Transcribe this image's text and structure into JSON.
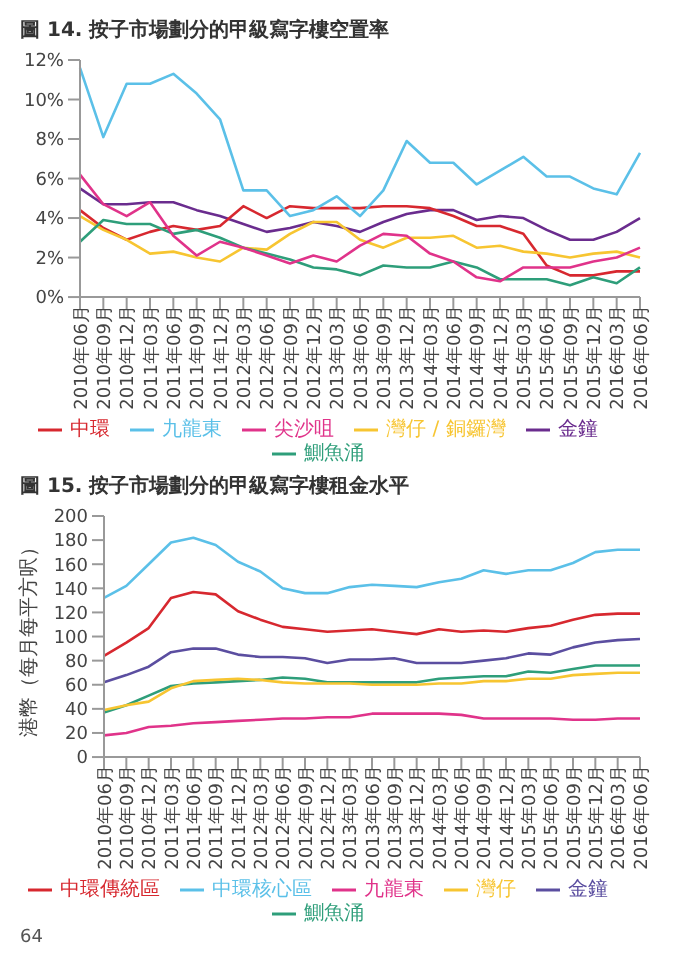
{
  "chart_data": [
    {
      "type": "line",
      "title": "圖 14. 按子市場劃分的甲級寫字樓空置率",
      "categories": [
        "2010年06月",
        "2010年09月",
        "2010年12月",
        "2011年03月",
        "2011年06月",
        "2011年09月",
        "2011年12月",
        "2012年03月",
        "2012年06月",
        "2012年09月",
        "2012年12月",
        "2013年03月",
        "2013年06月",
        "2013年09月",
        "2013年12月",
        "2014年03月",
        "2014年06月",
        "2014年09月",
        "2014年12月",
        "2015年03月",
        "2015年06月",
        "2015年09月",
        "2015年12月",
        "2016年03月",
        "2016年06月"
      ],
      "series": [
        {
          "name": "金鐘",
          "color": "#6a2c8e",
          "values": [
            5.5,
            4.7,
            4.7,
            4.8,
            4.8,
            4.4,
            4.1,
            3.7,
            3.3,
            3.5,
            3.8,
            3.6,
            3.3,
            3.8,
            4.2,
            4.4,
            4.4,
            3.9,
            4.1,
            4.0,
            3.4,
            2.9,
            2.9,
            3.3,
            4.0
          ]
        },
        {
          "name": "中環",
          "color": "#d7282f",
          "values": [
            4.4,
            3.5,
            2.9,
            3.3,
            3.6,
            3.4,
            3.6,
            4.6,
            4.0,
            4.6,
            4.5,
            4.5,
            4.5,
            4.6,
            4.6,
            4.5,
            4.1,
            3.6,
            3.6,
            3.2,
            1.6,
            1.1,
            1.1,
            1.3,
            1.3
          ]
        },
        {
          "name": "灣仔 / 銅鑼灣",
          "color": "#f7c531",
          "values": [
            4.1,
            3.4,
            2.9,
            2.2,
            2.3,
            2.0,
            1.8,
            2.5,
            2.4,
            3.2,
            3.8,
            3.8,
            2.9,
            2.5,
            3.0,
            3.0,
            3.1,
            2.5,
            2.6,
            2.3,
            2.2,
            2.0,
            2.2,
            2.3,
            2.0
          ]
        },
        {
          "name": "鰂魚涌",
          "color": "#2e9e7a",
          "values": [
            2.8,
            3.9,
            3.7,
            3.7,
            3.2,
            3.4,
            3.0,
            2.5,
            2.2,
            1.9,
            1.5,
            1.4,
            1.1,
            1.6,
            1.5,
            1.5,
            1.8,
            1.5,
            0.9,
            0.9,
            0.9,
            0.6,
            1.0,
            0.7,
            1.5
          ]
        },
        {
          "name": "尖沙咀",
          "color": "#e0338a",
          "values": [
            6.2,
            4.7,
            4.1,
            4.8,
            3.1,
            2.1,
            2.8,
            2.5,
            2.1,
            1.7,
            2.1,
            1.8,
            2.6,
            3.2,
            3.1,
            2.2,
            1.8,
            1.0,
            0.8,
            1.5,
            1.5,
            1.5,
            1.8,
            2.0,
            2.5
          ]
        },
        {
          "name": "九龍東",
          "color": "#5bc0e8",
          "values": [
            11.6,
            8.1,
            10.8,
            10.8,
            11.3,
            10.3,
            9.0,
            5.4,
            5.4,
            4.1,
            4.4,
            5.1,
            4.1,
            5.4,
            7.9,
            6.8,
            6.8,
            5.7,
            6.4,
            7.1,
            6.1,
            6.1,
            5.5,
            5.2,
            7.3
          ]
        }
      ],
      "ylim": [
        0,
        12
      ],
      "yticks": [
        {
          "value": 0,
          "label": "0%"
        },
        {
          "value": 2,
          "label": "2%"
        },
        {
          "value": 4,
          "label": "4%"
        },
        {
          "value": 6,
          "label": "6%"
        },
        {
          "value": 8,
          "label": "8%"
        },
        {
          "value": 10,
          "label": "10%"
        },
        {
          "value": 12,
          "label": "12%"
        }
      ],
      "legend": "bottom",
      "marker": "none",
      "line_style": "solid"
    },
    {
      "type": "line",
      "title": "圖 15. 按子市場劃分的甲級寫字樓租金水平",
      "ylabel": "港幣（每月每平方呎）",
      "categories": [
        "2010年06月",
        "2010年09月",
        "2010年12月",
        "2011年03月",
        "2011年06月",
        "2011年09月",
        "2011年12月",
        "2012年03月",
        "2012年06月",
        "2012年09月",
        "2012年12月",
        "2013年03月",
        "2013年06月",
        "2013年09月",
        "2013年12月",
        "2014年03月",
        "2014年06月",
        "2014年09月",
        "2014年12月",
        "2015年03月",
        "2015年06月",
        "2015年09月",
        "2015年12月",
        "2016年03月",
        "2016年06月"
      ],
      "series": [
        {
          "name": "中環核心區",
          "color": "#5bc0e8",
          "values": [
            132,
            142,
            160,
            178,
            182,
            176,
            162,
            154,
            140,
            136,
            136,
            141,
            143,
            142,
            141,
            145,
            148,
            155,
            152,
            155,
            155,
            161,
            170,
            172,
            172
          ]
        },
        {
          "name": "金鐘",
          "color": "#5b4ea0",
          "values": [
            62,
            68,
            75,
            87,
            90,
            90,
            85,
            83,
            83,
            82,
            78,
            81,
            81,
            82,
            78,
            78,
            78,
            80,
            82,
            86,
            85,
            91,
            95,
            97,
            98
          ]
        },
        {
          "name": "鰂魚涌",
          "color": "#2e9e7a",
          "values": [
            37,
            43,
            51,
            59,
            61,
            62,
            63,
            64,
            66,
            65,
            62,
            62,
            62,
            62,
            62,
            65,
            66,
            67,
            67,
            71,
            70,
            73,
            76,
            76,
            76
          ]
        },
        {
          "name": "中環傳統區",
          "color": "#d7282f",
          "values": [
            84,
            95,
            107,
            132,
            137,
            135,
            121,
            114,
            108,
            106,
            104,
            105,
            106,
            104,
            102,
            106,
            104,
            105,
            104,
            107,
            109,
            114,
            118,
            119,
            119
          ]
        },
        {
          "name": "灣仔",
          "color": "#f7c531",
          "values": [
            39,
            43,
            46,
            57,
            63,
            64,
            65,
            64,
            62,
            61,
            61,
            61,
            60,
            60,
            60,
            61,
            61,
            63,
            63,
            65,
            65,
            68,
            69,
            70,
            70
          ]
        },
        {
          "name": "九龍東",
          "color": "#e0338a",
          "values": [
            18,
            20,
            25,
            26,
            28,
            29,
            30,
            31,
            32,
            32,
            33,
            33,
            36,
            36,
            36,
            36,
            35,
            32,
            32,
            32,
            32,
            31,
            31,
            32,
            32
          ]
        }
      ],
      "ylim": [
        0,
        200
      ],
      "yticks": [
        0,
        20,
        40,
        60,
        80,
        100,
        120,
        140,
        160,
        180,
        200
      ],
      "legend": "bottom",
      "marker": "none",
      "line_style": "solid",
      "annotations": [
        "64"
      ]
    }
  ]
}
